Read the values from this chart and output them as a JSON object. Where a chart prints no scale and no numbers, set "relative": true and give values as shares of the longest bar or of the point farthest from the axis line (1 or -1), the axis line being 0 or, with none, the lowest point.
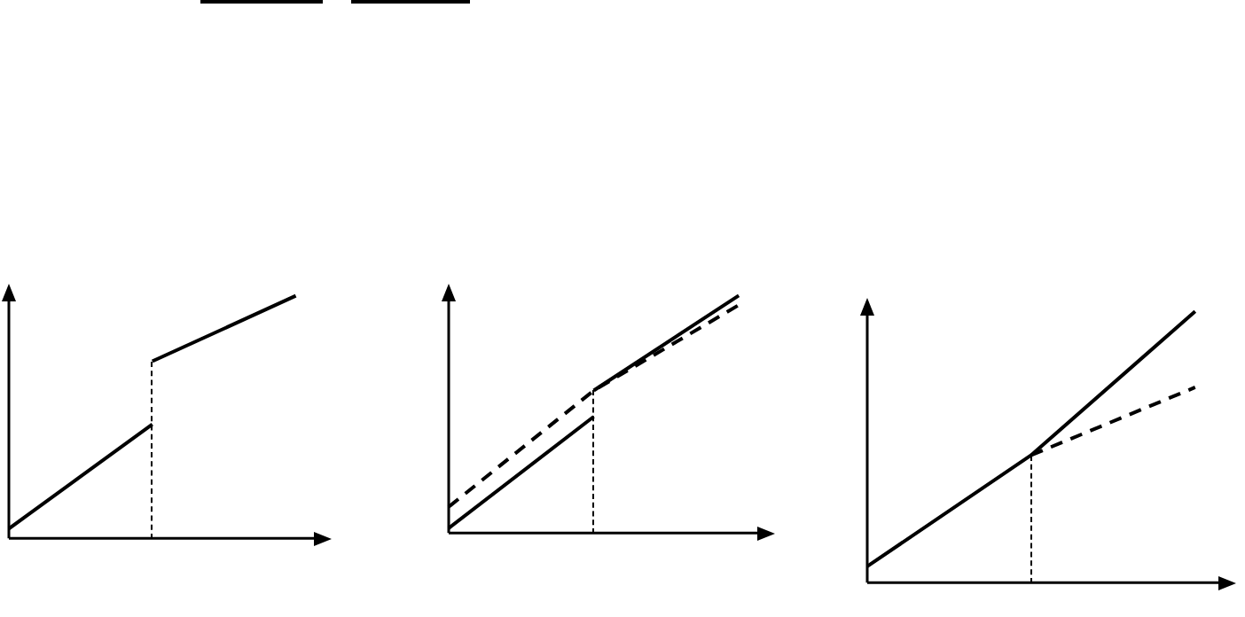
{
  "chart_data": [
    {
      "type": "line",
      "relative": true,
      "categories": [
        null,
        null,
        null
      ],
      "legend": false,
      "grid": false,
      "marker": "none",
      "series": [
        {
          "color": "#000000",
          "line_style": "solid",
          "values": [
            0.04,
            0.47,
            null
          ]
        },
        {
          "color": "#000000",
          "line_style": "solid",
          "values": [
            null,
            0.73,
            1
          ]
        }
      ]
    },
    {
      "type": "line",
      "relative": true,
      "categories": [
        null,
        null,
        null
      ],
      "legend": false,
      "grid": false,
      "marker": "none",
      "series": [
        {
          "color": "#000000",
          "line_style": "dashed",
          "values": [
            0.11,
            0.6,
            0.96
          ]
        },
        {
          "color": "#000000",
          "line_style": "solid",
          "values": [
            0.02,
            0.49,
            null
          ]
        },
        {
          "color": "#000000",
          "line_style": "solid",
          "values": [
            null,
            0.6,
            1
          ]
        }
      ]
    },
    {
      "type": "line",
      "relative": true,
      "categories": [
        null,
        null,
        null
      ],
      "legend": false,
      "grid": false,
      "marker": "none",
      "series": [
        {
          "color": "#000000",
          "line_style": "solid",
          "values": [
            0.06,
            0.47,
            1
          ]
        },
        {
          "color": "#000000",
          "line_style": "dashed",
          "values": [
            null,
            0.47,
            0.72
          ]
        }
      ]
    }
  ]
}
